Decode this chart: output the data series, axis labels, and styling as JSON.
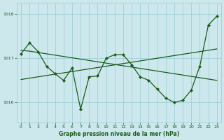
{
  "title": "Graphe pression niveau de la mer (hPa)",
  "bg_color": "#cce8ec",
  "grid_color": "#99ccd4",
  "line_color": "#1a5c1a",
  "ylim": [
    1015.55,
    1018.25
  ],
  "yticks": [
    1016,
    1017,
    1018
  ],
  "xlim": [
    -0.5,
    23.5
  ],
  "xticks": [
    0,
    1,
    2,
    3,
    4,
    5,
    6,
    7,
    8,
    9,
    10,
    11,
    12,
    13,
    14,
    15,
    16,
    17,
    18,
    19,
    20,
    21,
    22,
    23
  ],
  "jagged": [
    1017.1,
    1017.35,
    1017.15,
    1016.82,
    1016.65,
    1016.5,
    1016.78,
    1015.85,
    1016.58,
    1016.6,
    1017.0,
    1017.08,
    1017.08,
    1016.85,
    1016.58,
    1016.5,
    1016.3,
    1016.1,
    1016.0,
    1016.05,
    1016.28,
    1016.82,
    1017.75,
    1017.95
  ],
  "descending": [
    1017.18,
    1017.16,
    1017.13,
    1017.1,
    1017.07,
    1017.04,
    1017.01,
    1016.98,
    1016.95,
    1016.92,
    1016.89,
    1016.86,
    1016.83,
    1016.8,
    1016.77,
    1016.74,
    1016.71,
    1016.68,
    1016.65,
    1016.62,
    1016.59,
    1016.56,
    1016.53,
    1016.5
  ],
  "ascending": [
    1016.52,
    1016.55,
    1016.58,
    1016.61,
    1016.64,
    1016.67,
    1016.7,
    1016.73,
    1016.76,
    1016.79,
    1016.82,
    1016.85,
    1016.88,
    1016.91,
    1016.94,
    1016.97,
    1017.0,
    1017.03,
    1017.06,
    1017.09,
    1017.12,
    1017.15,
    1017.18,
    1017.21
  ]
}
